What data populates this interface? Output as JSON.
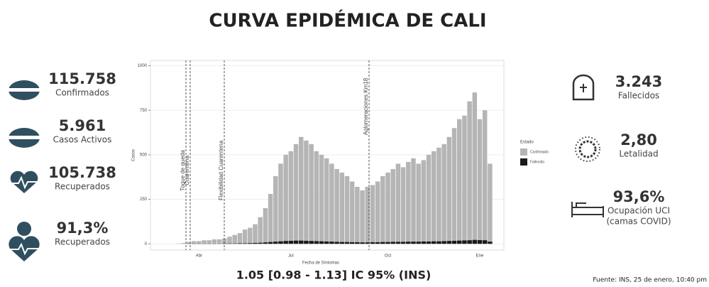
{
  "header": {
    "title": "CURVA EPIDÉMICA DE CALI"
  },
  "left_stats": [
    {
      "value": "115.758",
      "label": "Confirmados"
    },
    {
      "value": "5.961",
      "label": "Casos Activos"
    },
    {
      "value": "105.738",
      "label": "Recuperados"
    },
    {
      "value": "91,3%",
      "label": "Recuperados"
    }
  ],
  "right_stats": [
    {
      "value": "3.243",
      "label": "Fallecidos"
    },
    {
      "value": "2,80",
      "label": "Letalidad"
    },
    {
      "value": "93,6%",
      "label": "Ocupación UCI",
      "sublabel": "(camas COVID)"
    }
  ],
  "footer": {
    "rt": "1.05 [0.98 - 1.13] IC 95% (INS)",
    "source": "Fuente: INS, 25 de enero, 10:40 pm"
  },
  "chart_data": {
    "type": "bar",
    "xlabel": "Fecha de Síntomas",
    "ylabel": "Casos",
    "legend_title": "Estado",
    "categories": [
      null,
      null,
      null,
      null,
      "Abr",
      null,
      null,
      null,
      null,
      null,
      null,
      null,
      null,
      null,
      null,
      null,
      null,
      null,
      null,
      null,
      null,
      null,
      "Jul",
      null,
      null,
      null,
      null,
      null,
      null,
      null,
      null,
      null,
      null,
      null,
      null,
      null,
      null,
      null,
      null,
      null,
      null,
      "Oct",
      null,
      null,
      null,
      null,
      null,
      null,
      null,
      null,
      null,
      null,
      null,
      null,
      null,
      null,
      null,
      null,
      null,
      "Ene",
      null,
      null
    ],
    "series": [
      {
        "name": "Confirmado",
        "color": "#b5b5b5",
        "values": [
          2,
          5,
          10,
          15,
          15,
          20,
          20,
          25,
          25,
          30,
          40,
          50,
          60,
          80,
          90,
          110,
          150,
          200,
          280,
          380,
          450,
          500,
          520,
          560,
          600,
          580,
          560,
          520,
          500,
          480,
          450,
          420,
          400,
          380,
          350,
          320,
          300,
          320,
          330,
          350,
          380,
          400,
          420,
          450,
          430,
          460,
          480,
          450,
          470,
          500,
          520,
          540,
          560,
          600,
          650,
          700,
          720,
          800,
          850,
          700,
          750,
          450
        ]
      },
      {
        "name": "Fallecido",
        "color": "#1a1a1a",
        "values": [
          0,
          0,
          1,
          1,
          1,
          1,
          1,
          1,
          1,
          2,
          2,
          2,
          3,
          3,
          4,
          5,
          6,
          8,
          10,
          12,
          14,
          16,
          17,
          18,
          18,
          17,
          16,
          15,
          14,
          13,
          12,
          11,
          10,
          10,
          9,
          9,
          8,
          8,
          9,
          9,
          10,
          10,
          11,
          11,
          11,
          12,
          12,
          12,
          13,
          13,
          14,
          14,
          15,
          16,
          17,
          18,
          19,
          20,
          22,
          21,
          20,
          12
        ]
      }
    ],
    "annotations": [
      "Toque de queda",
      "Cuarentena",
      "Flexibilidad Cuarentena",
      "Aglomeraciones Km18"
    ],
    "ylim": [
      -35,
      1030
    ],
    "yticks": [
      0,
      250,
      500,
      750,
      1000
    ],
    "grid": true,
    "legend": "right"
  }
}
